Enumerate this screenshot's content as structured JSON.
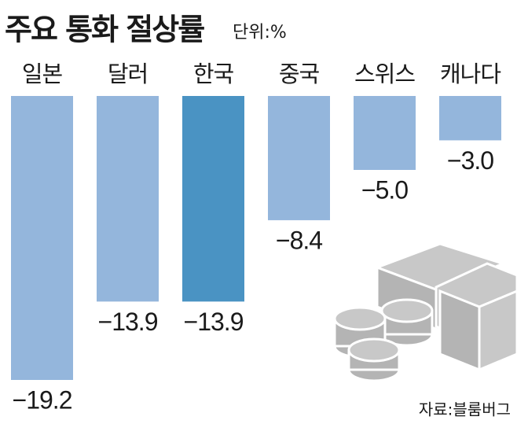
{
  "chart_data": {
    "type": "bar",
    "title": "주요 통화 절상률",
    "unit": "단위:%",
    "source": "자료:블룸버그",
    "categories": [
      "일본",
      "달러",
      "한국",
      "중국",
      "스위스",
      "캐나다"
    ],
    "values": [
      -19.2,
      -13.9,
      -13.9,
      -8.4,
      -5.0,
      -3.0
    ],
    "value_labels": [
      "−19.2",
      "−13.9",
      "−13.9",
      "−8.4",
      "−5.0",
      "−3.0"
    ],
    "colors": [
      "#94b6dc",
      "#94b6dc",
      "#4a93c3",
      "#94b6dc",
      "#94b6dc",
      "#94b6dc"
    ]
  }
}
